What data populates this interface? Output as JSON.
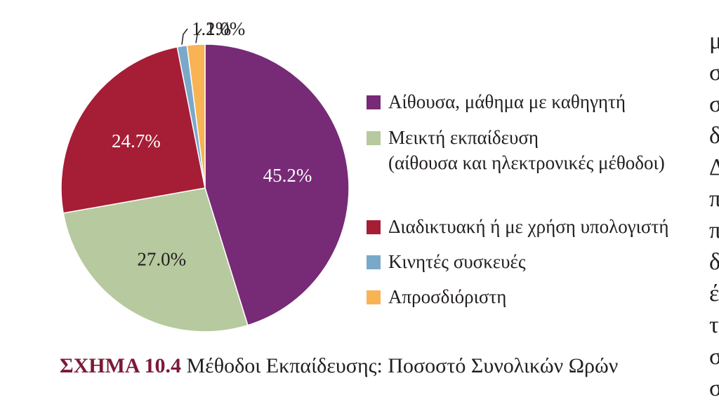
{
  "chart_data": {
    "type": "pie",
    "slices": [
      {
        "label": "Αίθουσα, μάθημα με καθηγητή",
        "value": 45.2,
        "display": "45.2%",
        "color": "#772a76",
        "label_color": "#ffffff"
      },
      {
        "label": "Μεικτή εκπαίδευση (αίθουσα και ηλεκτρονικές μέθοδοι)",
        "value": 27.0,
        "display": "27.0%",
        "color": "#b6c99f",
        "label_color": "#231f20"
      },
      {
        "label": "Διαδικτυακή ή με χρήση υπολογιστή",
        "value": 24.7,
        "display": "24.7%",
        "color": "#a51e35",
        "label_color": "#ffffff"
      },
      {
        "label": "Κινητές συσκευές",
        "value": 1.1,
        "display": "1.1%",
        "color": "#7aa8c9",
        "label_color": "#231f20"
      },
      {
        "label": "Απροσδιόριστη",
        "value": 2.0,
        "display": "2.0%",
        "color": "#f8b355",
        "label_color": "#231f20"
      }
    ],
    "legend_position": "right"
  },
  "legend": {
    "items": [
      {
        "line1": "Αίθουσα, μάθημα με καθηγητή",
        "line2": ""
      },
      {
        "line1": "Μεικτή εκπαίδευση",
        "line2": "(αίθουσα και ηλεκτρονικές μέθοδοι)"
      },
      {
        "line1": "Διαδικτυακή ή με χρήση υπολογιστή",
        "line2": ""
      },
      {
        "line1": "Κινητές συσκευές",
        "line2": ""
      },
      {
        "line1": "Απροσδιόριστη",
        "line2": ""
      }
    ]
  },
  "caption": {
    "number": "ΣΧΗΜΑ 10.4",
    "text": " Μέθοδοι Εκπαίδευσης: Ποσοστό Συνολικών Ωρών"
  },
  "side_text": {
    "lines": [
      "μ",
      "σ",
      "σ",
      "δ",
      "Δ",
      "π",
      "π",
      "δ",
      "έ",
      "τ",
      "σ",
      "σ"
    ]
  }
}
